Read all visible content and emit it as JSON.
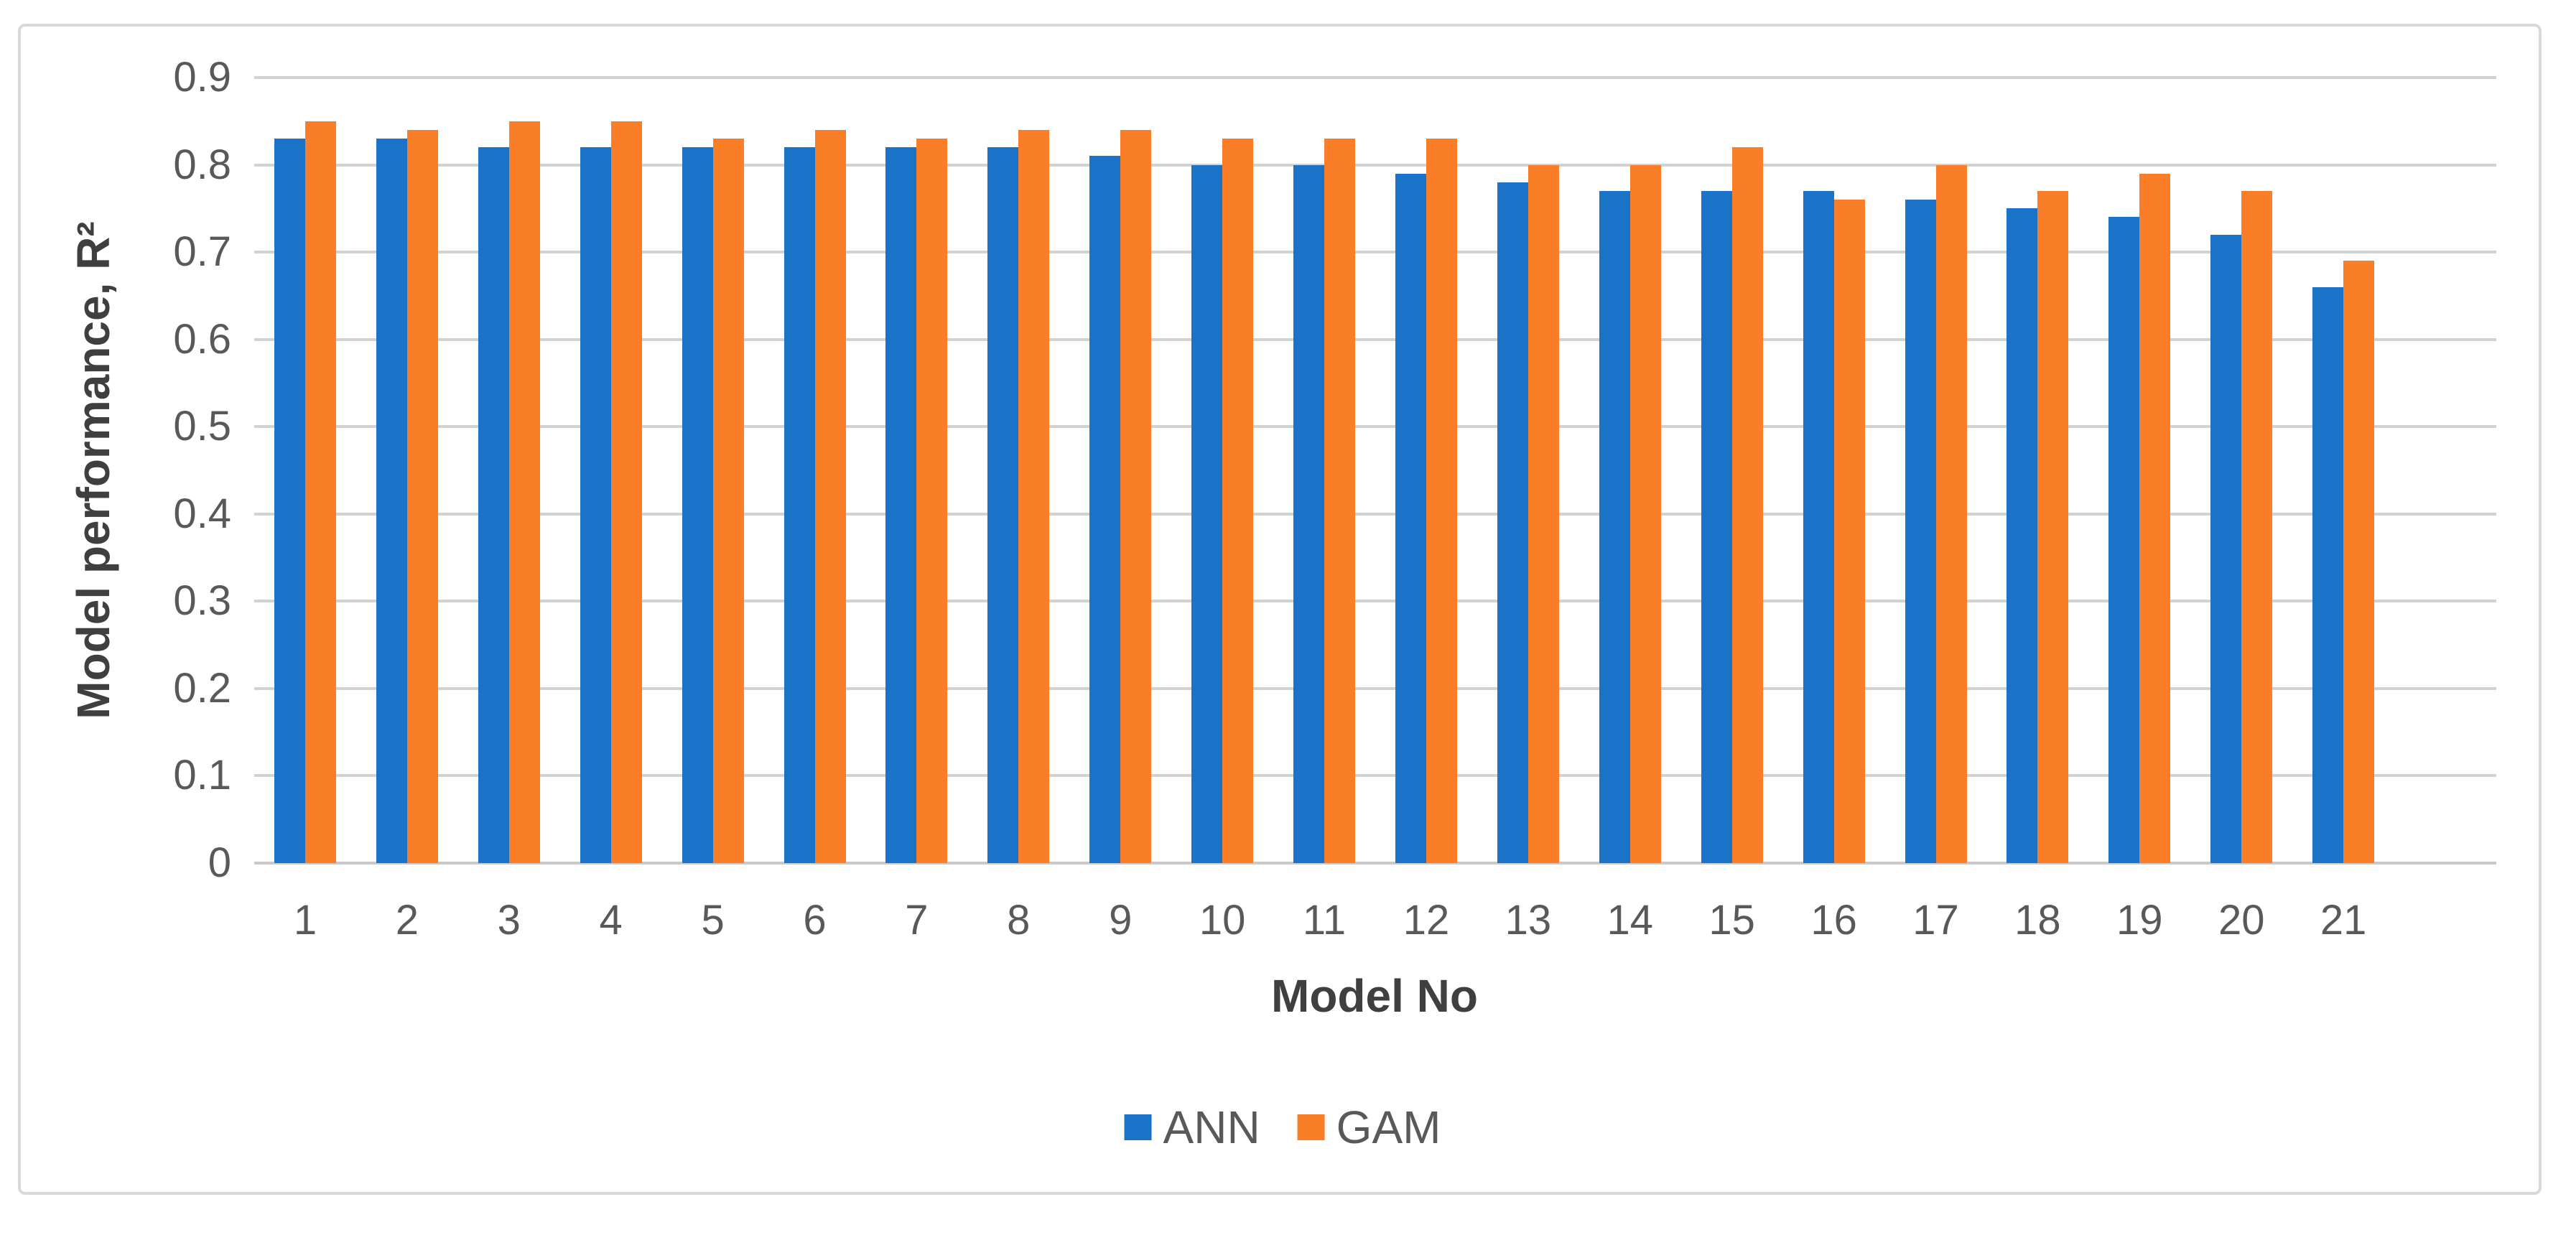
{
  "chart_data": {
    "type": "bar",
    "title": "",
    "categories": [
      "1",
      "2",
      "3",
      "4",
      "5",
      "6",
      "7",
      "8",
      "9",
      "10",
      "11",
      "12",
      "13",
      "14",
      "15",
      "16",
      "17",
      "18",
      "19",
      "20",
      "21"
    ],
    "series": [
      {
        "name": "ANN",
        "color": "#1B73C8",
        "values": [
          0.83,
          0.83,
          0.82,
          0.82,
          0.82,
          0.82,
          0.82,
          0.82,
          0.81,
          0.8,
          0.8,
          0.79,
          0.78,
          0.77,
          0.77,
          0.77,
          0.76,
          0.75,
          0.74,
          0.72,
          0.66
        ]
      },
      {
        "name": "GAM",
        "color": "#FA7D28",
        "values": [
          0.85,
          0.84,
          0.85,
          0.85,
          0.83,
          0.84,
          0.83,
          0.84,
          0.84,
          0.83,
          0.83,
          0.83,
          0.8,
          0.8,
          0.82,
          0.76,
          0.8,
          0.77,
          0.79,
          0.77,
          0.69
        ]
      }
    ],
    "xlabel": "Model No",
    "ylabel": "Model performance, R²",
    "ylim": [
      0,
      0.9
    ],
    "ytick_step": 0.1,
    "ytick_labels": [
      "0.9",
      "0.8",
      "0.7",
      "0.6",
      "0.5",
      "0.4",
      "0.3",
      "0.2",
      "0.1",
      "0"
    ],
    "grid": true,
    "legend_position": "bottom-center"
  },
  "colors": {
    "ann": "#1B73C8",
    "gam": "#FA7D28",
    "gridline": "#D2D2D2",
    "axis_line": "#C9C9C9",
    "tick_text": "#595959",
    "title_text": "#3F3F3F",
    "figure_border": "#D9D9D9",
    "background": "#FFFFFF"
  }
}
